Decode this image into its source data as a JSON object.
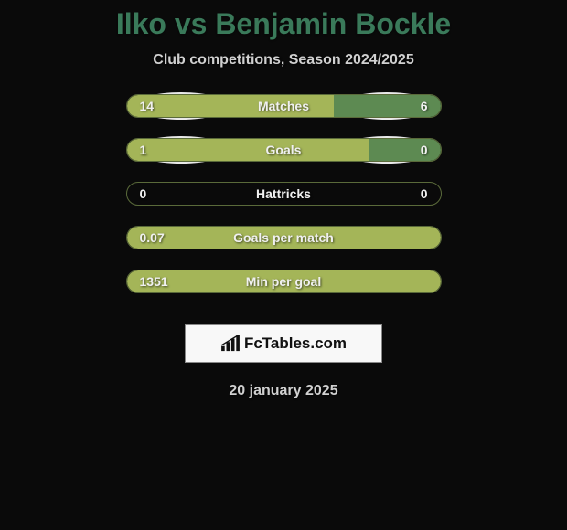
{
  "title": "Ilko vs Benjamin Bockle",
  "subtitle": "Club competitions, Season 2024/2025",
  "date": "20 january 2025",
  "logo": "FcTables.com",
  "colors": {
    "title_color": "#3a7a5a",
    "bar_left": "#a4b558",
    "bar_right": "#5d8a52",
    "ellipse": "#eaeaea",
    "background": "#0a0a0a"
  },
  "stats": [
    {
      "label": "Matches",
      "left_val": "14",
      "right_val": "6",
      "left_pct": 66,
      "right_pct": 34,
      "show_ellipses": true
    },
    {
      "label": "Goals",
      "left_val": "1",
      "right_val": "0",
      "left_pct": 77,
      "right_pct": 23,
      "show_ellipses": true
    },
    {
      "label": "Hattricks",
      "left_val": "0",
      "right_val": "0",
      "left_pct": 0,
      "right_pct": 0,
      "show_ellipses": false
    },
    {
      "label": "Goals per match",
      "left_val": "0.07",
      "right_val": "",
      "left_pct": 100,
      "right_pct": 0,
      "show_ellipses": false
    },
    {
      "label": "Min per goal",
      "left_val": "1351",
      "right_val": "",
      "left_pct": 100,
      "right_pct": 0,
      "show_ellipses": false
    }
  ]
}
